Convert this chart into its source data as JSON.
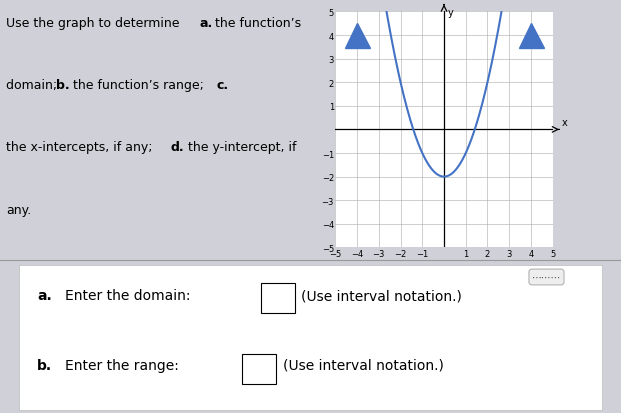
{
  "curve_color": "#4472C4",
  "curve_endpoints": [
    [
      -4,
      4
    ],
    [
      4,
      4
    ]
  ],
  "vertex": [
    0,
    -2
  ],
  "x_min": -5,
  "x_max": 5,
  "y_min": -5,
  "y_max": 5,
  "grid_color": "#aaaaaa",
  "axis_color": "#000000",
  "background_color": "#ffffff",
  "endpoint_color": "#4472C4",
  "endpoint_size": 18,
  "top_bg": "#d0d0d8",
  "bottom_bg": "#dde0e8",
  "text_left": "Use the graph to determine ",
  "text_a_bold": "a.",
  "text_after_a": " the function’s",
  "text_line2": "domain; ",
  "text_b_bold": "b.",
  "text_after_b": " the function’s range; ",
  "text_c_bold": "c.",
  "text_line3": "the x-intercepts, if any; ",
  "text_d_bold": "d.",
  "text_after_d": " the y-intercept, if",
  "text_line4": "any.",
  "qa_text": "a. Enter the domain:",
  "qa_bold": "a.",
  "qb_text": "b. Enter the range:",
  "qb_bold": "b.",
  "interval_note": "(Use interval notation.)"
}
